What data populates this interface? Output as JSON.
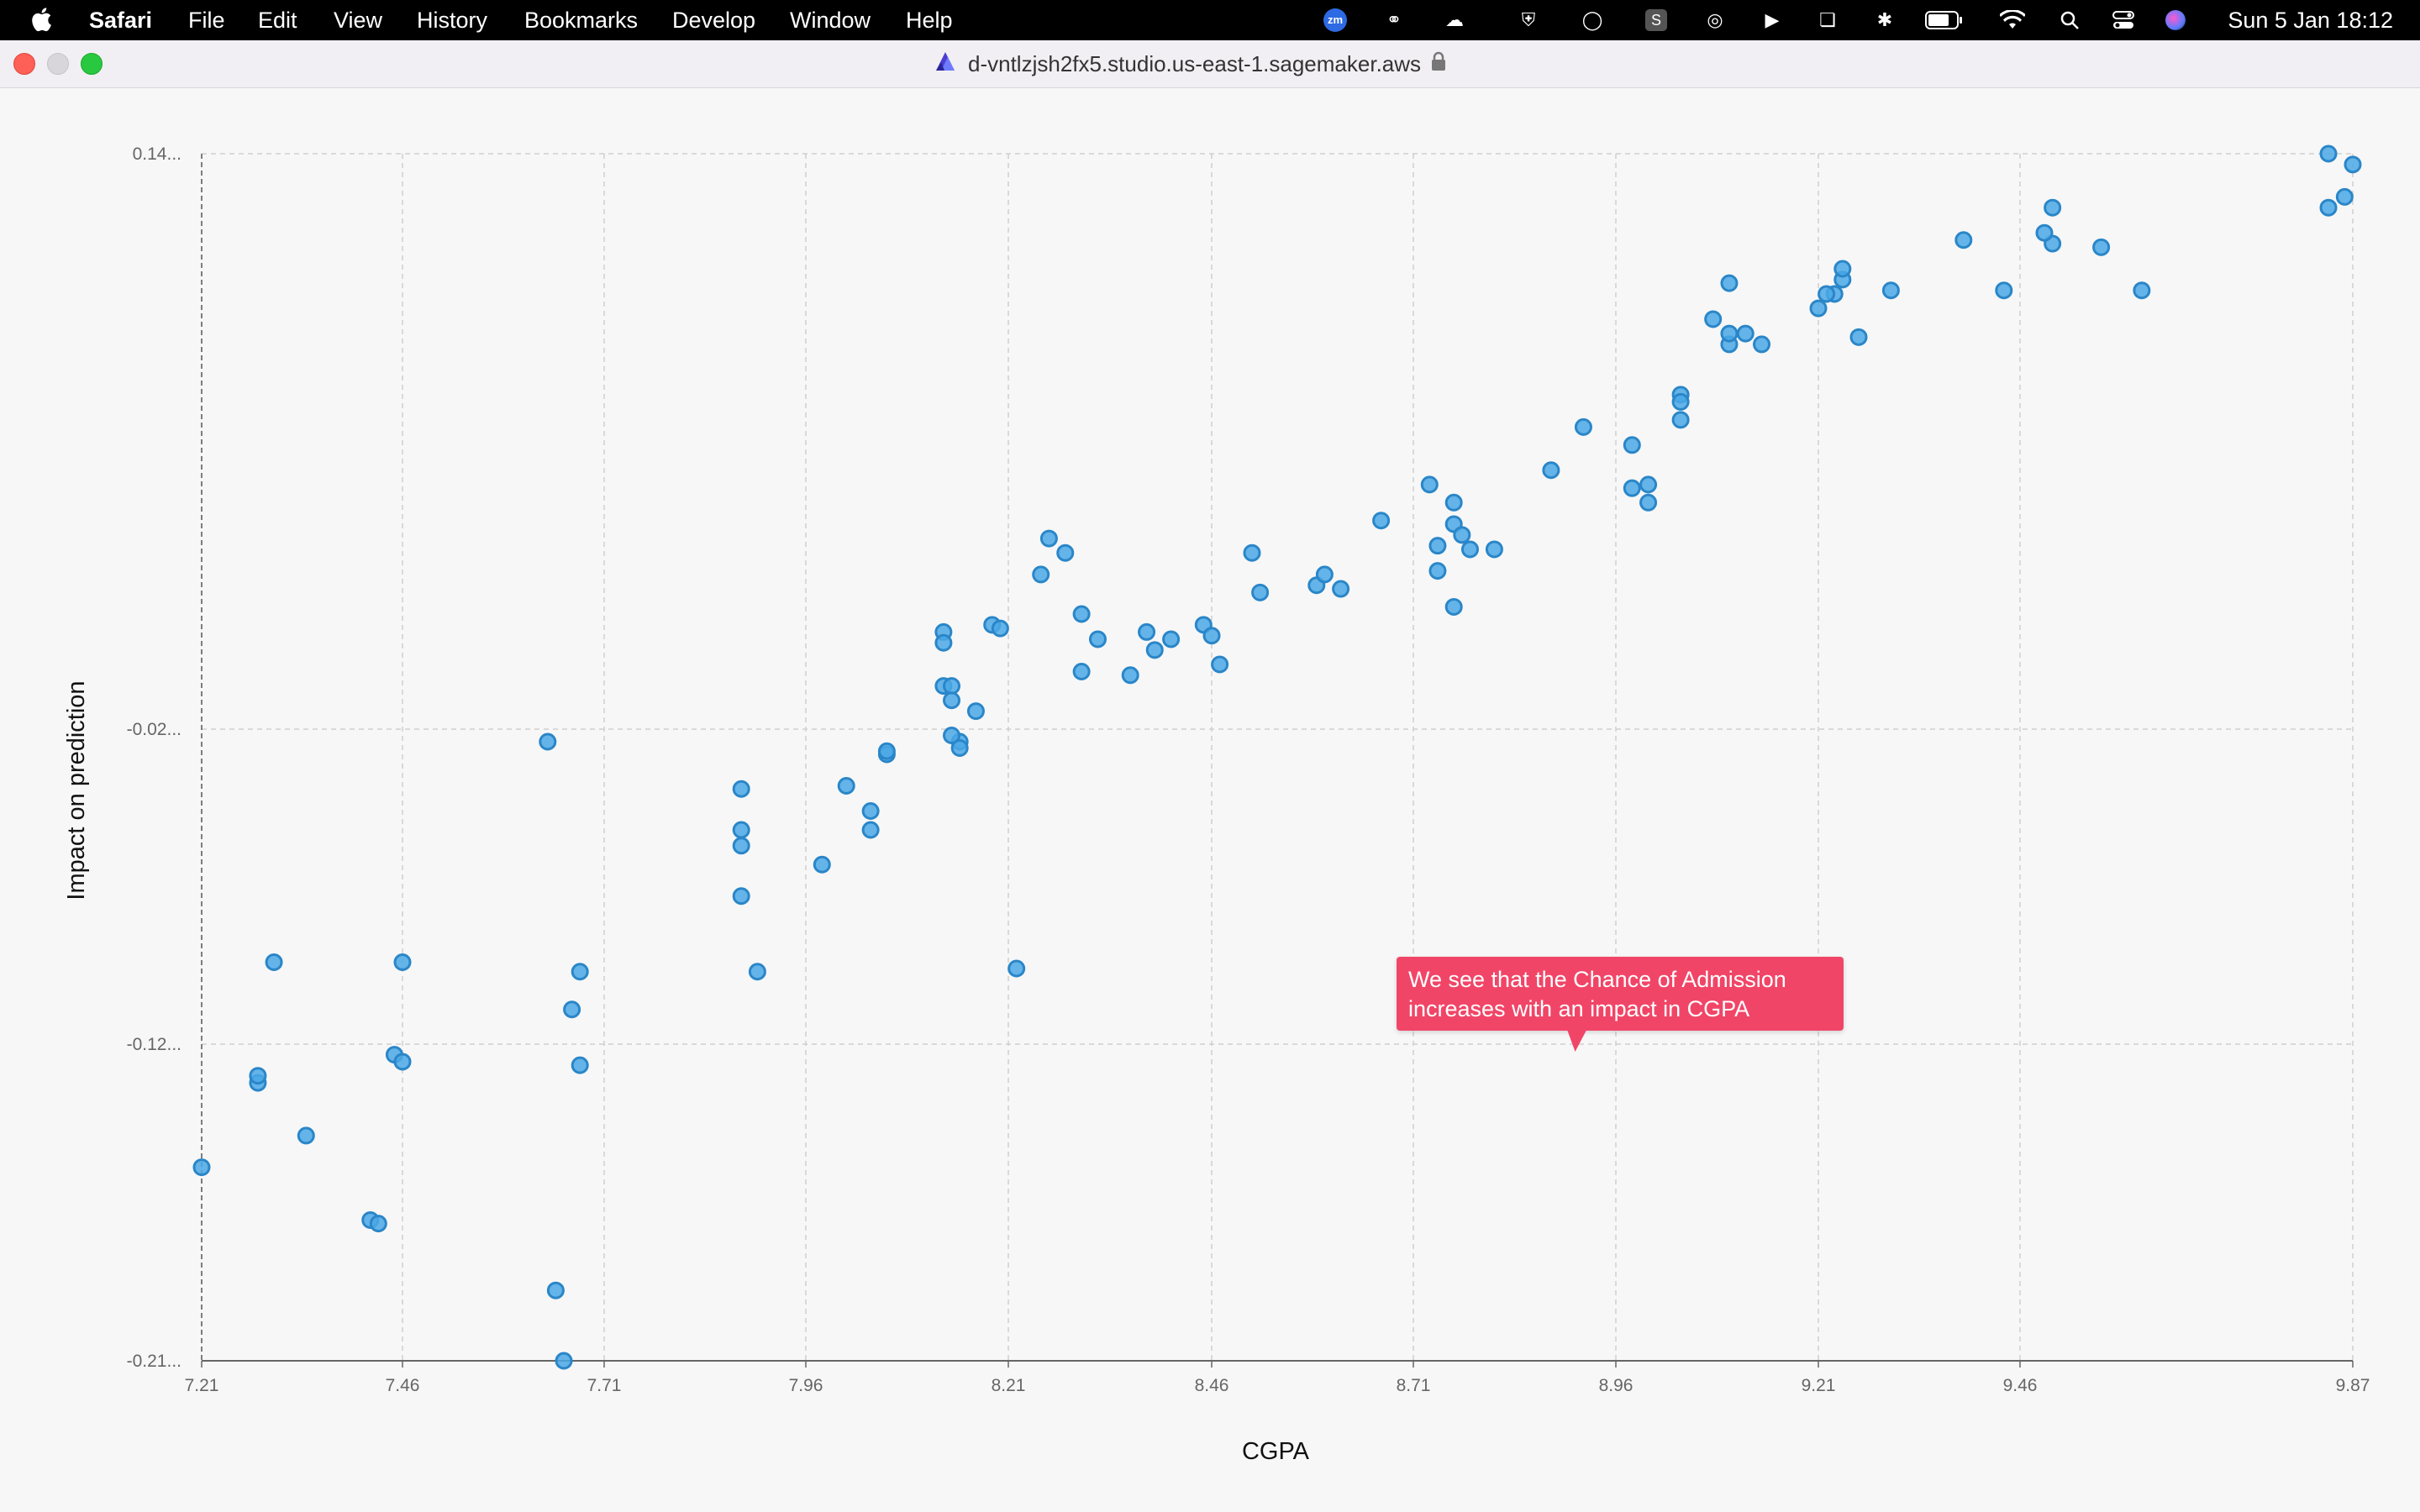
{
  "menubar": {
    "app_name": "Safari",
    "items": [
      "File",
      "Edit",
      "View",
      "History",
      "Bookmarks",
      "Develop",
      "Window",
      "Help"
    ],
    "clock": "Sun 5 Jan  18:12",
    "zoom_badge": "zm"
  },
  "browser": {
    "url": "d-vntlzjsh2fx5.studio.us-east-1.sagemaker.aws"
  },
  "annotation": {
    "line1": "We see that the Chance of Admission",
    "line2": "increases with an impact in CGPA"
  },
  "chart_data": {
    "type": "scatter",
    "xlabel": "CGPA",
    "ylabel": "Impact on prediction",
    "x_ticks": [
      "7.21",
      "7.46",
      "7.71",
      "7.96",
      "8.21",
      "8.46",
      "8.71",
      "8.96",
      "9.21",
      "9.46",
      "9.87"
    ],
    "y_ticks": [
      "0.14...",
      "-0.02...",
      "-0.12...",
      "-0.21..."
    ],
    "x_tick_values": [
      7.21,
      7.46,
      7.71,
      7.96,
      8.21,
      8.46,
      8.71,
      8.96,
      9.21,
      9.46,
      9.87
    ],
    "y_tick_values": [
      0.14,
      -0.02,
      -0.12,
      -0.21
    ],
    "xlim": [
      7.21,
      9.87
    ],
    "ylim": [
      -0.21,
      0.14
    ],
    "grid": true,
    "marker_color": "#4aa8e6",
    "marker_edge_color": "#2a86c8",
    "points": [
      [
        9.87,
        0.137
      ],
      [
        9.84,
        0.14
      ],
      [
        9.84,
        0.125
      ],
      [
        9.86,
        0.128
      ],
      [
        9.5,
        0.125
      ],
      [
        9.5,
        0.115
      ],
      [
        9.49,
        0.118
      ],
      [
        9.56,
        0.114
      ],
      [
        9.61,
        0.102
      ],
      [
        9.44,
        0.102
      ],
      [
        9.39,
        0.116
      ],
      [
        9.3,
        0.102
      ],
      [
        9.24,
        0.105
      ],
      [
        9.24,
        0.108
      ],
      [
        9.23,
        0.101
      ],
      [
        9.22,
        0.101
      ],
      [
        9.21,
        0.097
      ],
      [
        9.26,
        0.089
      ],
      [
        9.14,
        0.087
      ],
      [
        9.1,
        0.087
      ],
      [
        9.12,
        0.09
      ],
      [
        9.1,
        0.09
      ],
      [
        9.08,
        0.094
      ],
      [
        9.1,
        0.104
      ],
      [
        9.04,
        0.073
      ],
      [
        9.04,
        0.071
      ],
      [
        9.04,
        0.066
      ],
      [
        8.92,
        0.064
      ],
      [
        8.98,
        0.059
      ],
      [
        8.88,
        0.052
      ],
      [
        8.98,
        0.047
      ],
      [
        9.0,
        0.048
      ],
      [
        9.0,
        0.043
      ],
      [
        8.76,
        0.043
      ],
      [
        8.73,
        0.048
      ],
      [
        8.76,
        0.037
      ],
      [
        8.77,
        0.034
      ],
      [
        8.78,
        0.03
      ],
      [
        8.81,
        0.03
      ],
      [
        8.74,
        0.031
      ],
      [
        8.74,
        0.024
      ],
      [
        8.67,
        0.038
      ],
      [
        8.59,
        0.02
      ],
      [
        8.6,
        0.023
      ],
      [
        8.62,
        0.019
      ],
      [
        8.51,
        0.029
      ],
      [
        8.52,
        0.018
      ],
      [
        8.76,
        0.014
      ],
      [
        8.45,
        0.009
      ],
      [
        8.46,
        0.006
      ],
      [
        8.47,
        -0.002
      ],
      [
        8.39,
        0.002
      ],
      [
        8.38,
        0.007
      ],
      [
        8.41,
        0.005
      ],
      [
        8.36,
        -0.005
      ],
      [
        8.3,
        0.012
      ],
      [
        8.3,
        -0.004
      ],
      [
        8.32,
        0.005
      ],
      [
        8.28,
        0.029
      ],
      [
        8.26,
        0.033
      ],
      [
        8.25,
        0.023
      ],
      [
        8.19,
        0.009
      ],
      [
        8.2,
        0.008
      ],
      [
        8.13,
        0.007
      ],
      [
        8.13,
        0.004
      ],
      [
        8.13,
        -0.008
      ],
      [
        8.14,
        -0.008
      ],
      [
        8.14,
        -0.012
      ],
      [
        8.17,
        -0.015
      ],
      [
        8.15,
        -0.024
      ],
      [
        8.14,
        -0.022
      ],
      [
        8.15,
        -0.026
      ],
      [
        8.06,
        -0.028
      ],
      [
        8.06,
        -0.027
      ],
      [
        8.01,
        -0.038
      ],
      [
        8.04,
        -0.046
      ],
      [
        8.04,
        -0.052
      ],
      [
        7.98,
        -0.063
      ],
      [
        7.88,
        -0.039
      ],
      [
        7.88,
        -0.052
      ],
      [
        7.88,
        -0.057
      ],
      [
        7.88,
        -0.073
      ],
      [
        7.9,
        -0.097
      ],
      [
        8.22,
        -0.096
      ],
      [
        7.64,
        -0.024
      ],
      [
        7.68,
        -0.097
      ],
      [
        7.67,
        -0.109
      ],
      [
        7.68,
        -0.126
      ],
      [
        7.65,
        -0.19
      ],
      [
        7.66,
        -0.21
      ],
      [
        7.46,
        -0.094
      ],
      [
        7.45,
        -0.123
      ],
      [
        7.46,
        -0.125
      ],
      [
        7.3,
        -0.094
      ],
      [
        7.28,
        -0.131
      ],
      [
        7.28,
        -0.129
      ],
      [
        7.34,
        -0.146
      ],
      [
        7.42,
        -0.17
      ],
      [
        7.43,
        -0.171
      ],
      [
        7.21,
        -0.155
      ]
    ]
  }
}
